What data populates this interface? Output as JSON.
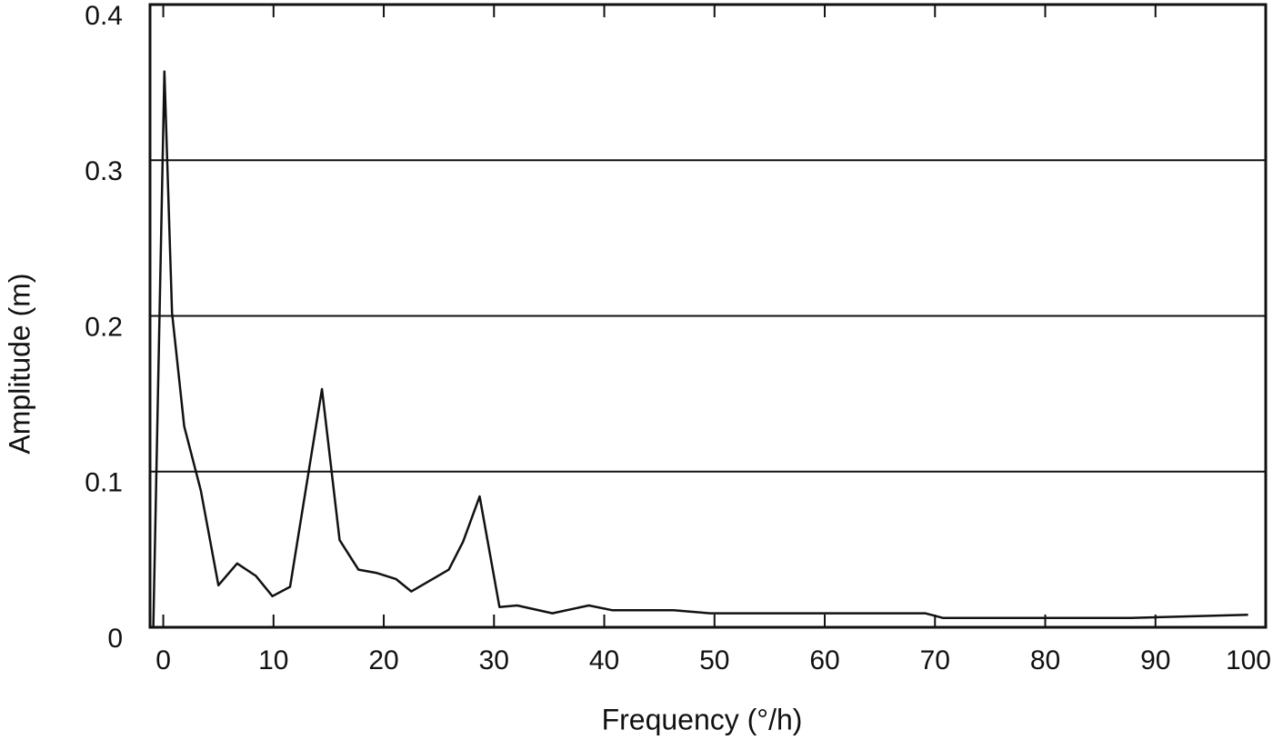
{
  "chart_data": {
    "type": "line",
    "x_label": "Frequency (°/h)",
    "y_label": "Amplitude (m)",
    "xlim": [
      -1.2,
      100
    ],
    "ylim": [
      0,
      0.4
    ],
    "xticks": [
      0,
      10,
      20,
      30,
      40,
      50,
      60,
      70,
      80,
      90,
      100
    ],
    "yticks": [
      0,
      0.1,
      0.2,
      0.3,
      0.4
    ],
    "grid": true,
    "series": [
      {
        "color": "#111111",
        "x": [
          -0.9,
          0.1,
          0.8,
          1.9,
          3.4,
          5.0,
          6.7,
          8.4,
          9.9,
          11.5,
          14.4,
          16.0,
          17.7,
          19.3,
          21.1,
          22.5,
          24.2,
          25.9,
          27.2,
          28.7,
          30.5,
          32.1,
          35.3,
          38.6,
          40.7,
          46.3,
          49.6,
          54.5,
          69.1,
          70.7,
          87.8,
          98.4
        ],
        "values": [
          0.0,
          0.357,
          0.202,
          0.129,
          0.088,
          0.027,
          0.041,
          0.033,
          0.02,
          0.026,
          0.153,
          0.056,
          0.037,
          0.035,
          0.031,
          0.023,
          0.03,
          0.037,
          0.055,
          0.084,
          0.013,
          0.014,
          0.009,
          0.014,
          0.011,
          0.011,
          0.009,
          0.009,
          0.009,
          0.006,
          0.006,
          0.008
        ]
      }
    ]
  }
}
